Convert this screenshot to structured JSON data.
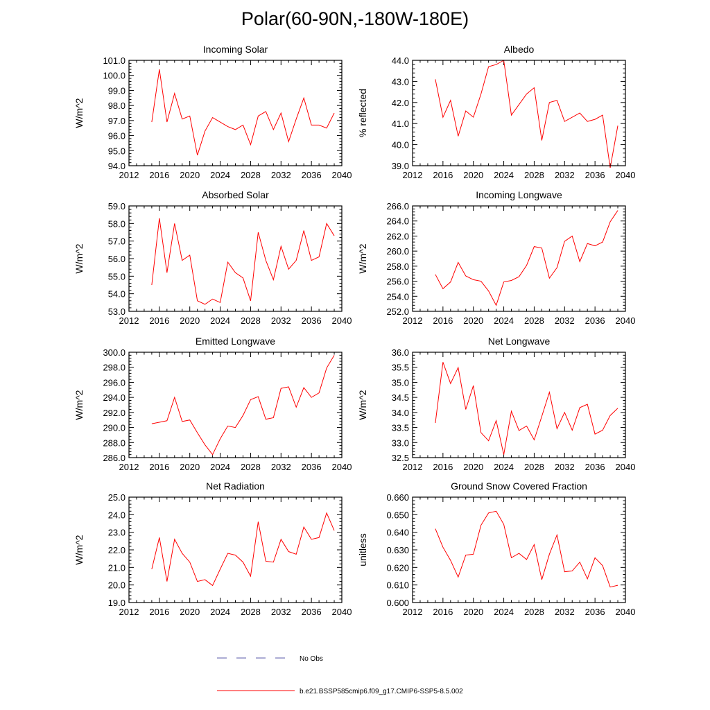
{
  "page": {
    "title": "Polar(60-90N,-180W-180E)",
    "legend": {
      "obs_label": "No Obs",
      "obs_color": "#5a5aa8",
      "model_label": "b.e21.BSSP585cmip6.f09_g17.CMIP6-SSP5-8.5.002",
      "model_color": "#ff0000"
    }
  },
  "chart_data": [
    {
      "type": "line",
      "title": "Incoming Solar",
      "ylabel": "W/m^2",
      "xlabel": "",
      "xlim": [
        2012,
        2040
      ],
      "ylim": [
        94.0,
        101.0
      ],
      "xticks": [
        2012,
        2016,
        2020,
        2024,
        2028,
        2032,
        2036,
        2040
      ],
      "yticks": [
        94.0,
        95.0,
        96.0,
        97.0,
        98.0,
        99.0,
        100.0,
        101.0
      ],
      "decimals": 1,
      "x": [
        2015,
        2016,
        2017,
        2018,
        2019,
        2020,
        2021,
        2022,
        2023,
        2024,
        2025,
        2026,
        2027,
        2028,
        2029,
        2030,
        2031,
        2032,
        2033,
        2034,
        2035,
        2036,
        2037,
        2038,
        2039
      ],
      "series": [
        {
          "name": "b.e21.BSSP585cmip6.f09_g17.CMIP6-SSP5-8.5.002",
          "values": [
            96.9,
            100.4,
            96.9,
            98.8,
            97.1,
            97.3,
            94.7,
            96.3,
            97.2,
            96.9,
            96.6,
            96.4,
            96.7,
            95.4,
            97.3,
            97.6,
            96.4,
            97.5,
            95.6,
            97.1,
            98.5,
            96.7,
            96.7,
            96.5,
            97.5
          ]
        }
      ]
    },
    {
      "type": "line",
      "title": "Albedo",
      "ylabel": "% reflected",
      "xlabel": "",
      "xlim": [
        2012,
        2040
      ],
      "ylim": [
        39.0,
        44.0
      ],
      "xticks": [
        2012,
        2016,
        2020,
        2024,
        2028,
        2032,
        2036,
        2040
      ],
      "yticks": [
        39.0,
        40.0,
        41.0,
        42.0,
        43.0,
        44.0
      ],
      "decimals": 1,
      "x": [
        2015,
        2016,
        2017,
        2018,
        2019,
        2020,
        2021,
        2022,
        2023,
        2024,
        2025,
        2026,
        2027,
        2028,
        2029,
        2030,
        2031,
        2032,
        2033,
        2034,
        2035,
        2036,
        2037,
        2038,
        2039
      ],
      "series": [
        {
          "name": "b.e21.BSSP585cmip6.f09_g17.CMIP6-SSP5-8.5.002",
          "values": [
            43.1,
            41.3,
            42.1,
            40.4,
            41.6,
            41.3,
            42.4,
            43.7,
            43.8,
            44.0,
            41.4,
            41.9,
            42.4,
            42.7,
            40.2,
            42.0,
            42.1,
            41.1,
            41.3,
            41.5,
            41.1,
            41.2,
            41.4,
            38.9,
            40.9
          ]
        }
      ]
    },
    {
      "type": "line",
      "title": "Absorbed Solar",
      "ylabel": "W/m^2",
      "xlabel": "",
      "xlim": [
        2012,
        2040
      ],
      "ylim": [
        53.0,
        59.0
      ],
      "xticks": [
        2012,
        2016,
        2020,
        2024,
        2028,
        2032,
        2036,
        2040
      ],
      "yticks": [
        53.0,
        54.0,
        55.0,
        56.0,
        57.0,
        58.0,
        59.0
      ],
      "decimals": 1,
      "x": [
        2015,
        2016,
        2017,
        2018,
        2019,
        2020,
        2021,
        2022,
        2023,
        2024,
        2025,
        2026,
        2027,
        2028,
        2029,
        2030,
        2031,
        2032,
        2033,
        2034,
        2035,
        2036,
        2037,
        2038,
        2039
      ],
      "series": [
        {
          "name": "b.e21.BSSP585cmip6.f09_g17.CMIP6-SSP5-8.5.002",
          "values": [
            54.5,
            58.3,
            55.2,
            58.0,
            55.9,
            56.2,
            53.6,
            53.4,
            53.7,
            53.5,
            55.8,
            55.2,
            54.9,
            53.6,
            57.5,
            55.9,
            54.8,
            56.7,
            55.4,
            55.9,
            57.6,
            55.9,
            56.1,
            58.0,
            57.3
          ]
        }
      ]
    },
    {
      "type": "line",
      "title": "Incoming Longwave",
      "ylabel": "W/m^2",
      "xlabel": "",
      "xlim": [
        2012,
        2040
      ],
      "ylim": [
        252.0,
        266.0
      ],
      "xticks": [
        2012,
        2016,
        2020,
        2024,
        2028,
        2032,
        2036,
        2040
      ],
      "yticks": [
        252.0,
        254.0,
        256.0,
        258.0,
        260.0,
        262.0,
        264.0,
        266.0
      ],
      "decimals": 1,
      "x": [
        2015,
        2016,
        2017,
        2018,
        2019,
        2020,
        2021,
        2022,
        2023,
        2024,
        2025,
        2026,
        2027,
        2028,
        2029,
        2030,
        2031,
        2032,
        2033,
        2034,
        2035,
        2036,
        2037,
        2038,
        2039
      ],
      "series": [
        {
          "name": "b.e21.BSSP585cmip6.f09_g17.CMIP6-SSP5-8.5.002",
          "values": [
            256.9,
            255.0,
            255.9,
            258.5,
            256.7,
            256.2,
            256.0,
            254.7,
            252.8,
            255.9,
            256.1,
            256.6,
            258.1,
            260.6,
            260.4,
            256.4,
            257.8,
            261.3,
            262.0,
            258.6,
            261.0,
            260.7,
            261.2,
            263.9,
            265.4
          ]
        }
      ]
    },
    {
      "type": "line",
      "title": "Emitted Longwave",
      "ylabel": "W/m^2",
      "xlabel": "",
      "xlim": [
        2012,
        2040
      ],
      "ylim": [
        286.0,
        300.0
      ],
      "xticks": [
        2012,
        2016,
        2020,
        2024,
        2028,
        2032,
        2036,
        2040
      ],
      "yticks": [
        286.0,
        288.0,
        290.0,
        292.0,
        294.0,
        296.0,
        298.0,
        300.0
      ],
      "decimals": 1,
      "x": [
        2015,
        2016,
        2017,
        2018,
        2019,
        2020,
        2021,
        2022,
        2023,
        2024,
        2025,
        2026,
        2027,
        2028,
        2029,
        2030,
        2031,
        2032,
        2033,
        2034,
        2035,
        2036,
        2037,
        2038,
        2039
      ],
      "series": [
        {
          "name": "b.e21.BSSP585cmip6.f09_g17.CMIP6-SSP5-8.5.002",
          "values": [
            290.5,
            290.7,
            290.9,
            294.0,
            290.8,
            291.0,
            289.3,
            287.7,
            286.4,
            288.5,
            290.2,
            290.0,
            291.6,
            293.7,
            294.1,
            291.1,
            291.3,
            295.2,
            295.4,
            292.7,
            295.3,
            294.0,
            294.6,
            297.9,
            299.6
          ]
        }
      ]
    },
    {
      "type": "line",
      "title": "Net Longwave",
      "ylabel": "W/m^2",
      "xlabel": "",
      "xlim": [
        2012,
        2040
      ],
      "ylim": [
        32.5,
        36.0
      ],
      "xticks": [
        2012,
        2016,
        2020,
        2024,
        2028,
        2032,
        2036,
        2040
      ],
      "yticks": [
        32.5,
        33.0,
        33.5,
        34.0,
        34.5,
        35.0,
        35.5,
        36.0
      ],
      "decimals": 1,
      "x": [
        2015,
        2016,
        2017,
        2018,
        2019,
        2020,
        2021,
        2022,
        2023,
        2024,
        2025,
        2026,
        2027,
        2028,
        2029,
        2030,
        2031,
        2032,
        2033,
        2034,
        2035,
        2036,
        2037,
        2038,
        2039
      ],
      "series": [
        {
          "name": "b.e21.BSSP585cmip6.f09_g17.CMIP6-SSP5-8.5.002",
          "values": [
            33.65,
            35.67,
            34.96,
            35.49,
            34.1,
            34.89,
            33.33,
            33.06,
            33.73,
            32.6,
            34.04,
            33.4,
            33.55,
            33.09,
            33.87,
            34.67,
            33.46,
            34.0,
            33.41,
            34.16,
            34.27,
            33.28,
            33.41,
            33.9,
            34.14
          ]
        }
      ]
    },
    {
      "type": "line",
      "title": "Net Radiation",
      "ylabel": "W/m^2",
      "xlabel": "",
      "xlim": [
        2012,
        2040
      ],
      "ylim": [
        19.0,
        25.0
      ],
      "xticks": [
        2012,
        2016,
        2020,
        2024,
        2028,
        2032,
        2036,
        2040
      ],
      "yticks": [
        19.0,
        20.0,
        21.0,
        22.0,
        23.0,
        24.0,
        25.0
      ],
      "decimals": 1,
      "x": [
        2015,
        2016,
        2017,
        2018,
        2019,
        2020,
        2021,
        2022,
        2023,
        2024,
        2025,
        2026,
        2027,
        2028,
        2029,
        2030,
        2031,
        2032,
        2033,
        2034,
        2035,
        2036,
        2037,
        2038,
        2039
      ],
      "series": [
        {
          "name": "b.e21.BSSP585cmip6.f09_g17.CMIP6-SSP5-8.5.002",
          "values": [
            20.9,
            22.7,
            20.2,
            22.6,
            21.8,
            21.3,
            20.2,
            20.3,
            19.97,
            20.9,
            21.8,
            21.7,
            21.3,
            20.5,
            23.6,
            21.35,
            21.3,
            22.6,
            21.9,
            21.75,
            23.3,
            22.6,
            22.7,
            24.1,
            23.1
          ]
        }
      ]
    },
    {
      "type": "line",
      "title": "Ground Snow Covered Fraction",
      "ylabel": "unitless",
      "xlabel": "",
      "xlim": [
        2012,
        2040
      ],
      "ylim": [
        0.6,
        0.66
      ],
      "xticks": [
        2012,
        2016,
        2020,
        2024,
        2028,
        2032,
        2036,
        2040
      ],
      "yticks": [
        0.6,
        0.61,
        0.62,
        0.63,
        0.64,
        0.65,
        0.66
      ],
      "decimals": 3,
      "x": [
        2015,
        2016,
        2017,
        2018,
        2019,
        2020,
        2021,
        2022,
        2023,
        2024,
        2025,
        2026,
        2027,
        2028,
        2029,
        2030,
        2031,
        2032,
        2033,
        2034,
        2035,
        2036,
        2037,
        2038,
        2039
      ],
      "series": [
        {
          "name": "b.e21.BSSP585cmip6.f09_g17.CMIP6-SSP5-8.5.002",
          "values": [
            0.642,
            0.6315,
            0.624,
            0.6145,
            0.627,
            0.6275,
            0.644,
            0.651,
            0.652,
            0.6445,
            0.6255,
            0.628,
            0.6245,
            0.633,
            0.613,
            0.6275,
            0.6385,
            0.6175,
            0.618,
            0.623,
            0.6135,
            0.6255,
            0.621,
            0.6088,
            0.6098
          ]
        }
      ]
    }
  ]
}
